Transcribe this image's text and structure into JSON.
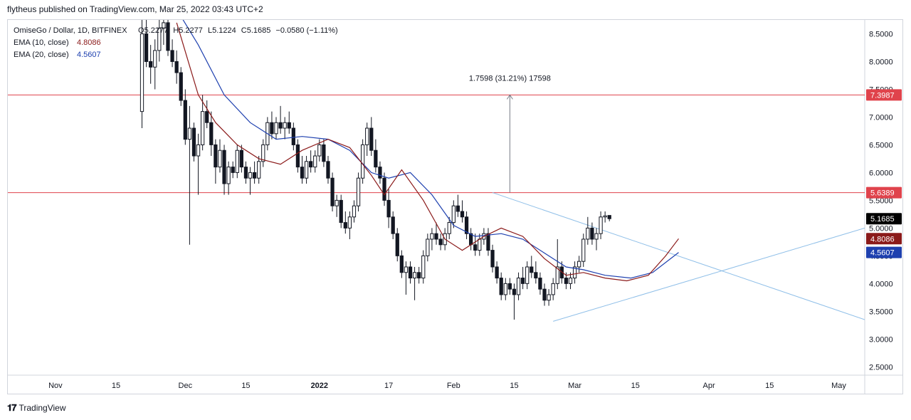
{
  "caption": "flytheus published on TradingView.com, Mar 25, 2022 03:43 UTC+2",
  "footer": {
    "brand": "TradingView",
    "logo_icon": "tradingview-logo-icon"
  },
  "colors": {
    "ema10": "#8b1a1a",
    "ema20": "#1e40af",
    "hline": "#e0434c",
    "trend": "#8fbfe8",
    "candle": "#131722",
    "grid": "#d1d4dc"
  },
  "chart_data": {
    "type": "candlestick",
    "legend": {
      "symbol": "OmiseGo / Dollar, 1D, BITFINEX",
      "ohlc": {
        "o_label": "O",
        "o": "5.2277",
        "h_label": "H",
        "h": "5.2277",
        "l_label": "L",
        "l": "5.1224",
        "c_label": "C",
        "c": "5.1685",
        "change": "−0.0580 (−1.11%)"
      },
      "ema10": {
        "label": "EMA (10, close)",
        "value": "4.8086"
      },
      "ema20": {
        "label": "EMA (20, close)",
        "value": "4.5607"
      }
    },
    "y_ticks": [
      "8.5000",
      "8.0000",
      "7.5000",
      "7.0000",
      "6.5000",
      "6.0000",
      "5.5000",
      "5.0000",
      "4.5000",
      "4.0000",
      "3.5000",
      "3.0000",
      "2.5000"
    ],
    "y_tick_values": [
      8.5,
      8.0,
      7.5,
      7.0,
      6.5,
      6.0,
      5.5,
      5.0,
      4.5,
      4.0,
      3.5,
      3.0,
      2.5
    ],
    "ylim": [
      2.35,
      8.75
    ],
    "x_ticks": [
      {
        "label": "Nov",
        "date": "2021-11-01"
      },
      {
        "label": "15",
        "date": "2021-11-15"
      },
      {
        "label": "Dec",
        "date": "2021-12-01"
      },
      {
        "label": "15",
        "date": "2021-12-15"
      },
      {
        "label": "2022",
        "date": "2022-01-01"
      },
      {
        "label": "17",
        "date": "2022-01-17"
      },
      {
        "label": "Feb",
        "date": "2022-02-01"
      },
      {
        "label": "15",
        "date": "2022-02-15"
      },
      {
        "label": "Mar",
        "date": "2022-03-01"
      },
      {
        "label": "15",
        "date": "2022-03-15"
      },
      {
        "label": "Apr",
        "date": "2022-04-01"
      },
      {
        "label": "15",
        "date": "2022-04-15"
      },
      {
        "label": "May",
        "date": "2022-05-01"
      }
    ],
    "xlim": [
      "2021-10-21",
      "2022-05-07"
    ],
    "first_candle_date": "2021-11-21",
    "candles": [
      [
        7.1,
        8.8,
        6.8,
        8.5
      ],
      [
        8.5,
        8.9,
        7.9,
        8.0
      ],
      [
        8.0,
        8.3,
        7.6,
        7.9
      ],
      [
        7.9,
        8.4,
        7.5,
        8.2
      ],
      [
        8.2,
        8.8,
        8.0,
        8.6
      ],
      [
        8.6,
        9.0,
        8.3,
        8.7
      ],
      [
        8.7,
        8.9,
        8.1,
        8.2
      ],
      [
        8.2,
        8.4,
        7.9,
        8.0
      ],
      [
        8.0,
        8.2,
        7.6,
        7.8
      ],
      [
        7.8,
        7.9,
        7.2,
        7.3
      ],
      [
        7.3,
        7.5,
        6.5,
        6.6
      ],
      [
        6.6,
        7.2,
        4.7,
        6.8
      ],
      [
        6.8,
        6.9,
        6.2,
        6.3
      ],
      [
        6.3,
        6.7,
        5.6,
        6.5
      ],
      [
        6.5,
        7.4,
        6.4,
        7.1
      ],
      [
        7.1,
        7.3,
        6.8,
        6.9
      ],
      [
        6.9,
        7.1,
        6.3,
        6.5
      ],
      [
        6.5,
        6.6,
        5.8,
        6.1
      ],
      [
        6.1,
        6.6,
        6.0,
        6.4
      ],
      [
        6.4,
        6.5,
        5.6,
        5.8
      ],
      [
        5.8,
        6.2,
        5.6,
        6.1
      ],
      [
        6.1,
        6.2,
        5.9,
        6.0
      ],
      [
        6.0,
        6.5,
        5.9,
        6.4
      ],
      [
        6.4,
        6.5,
        6.0,
        6.1
      ],
      [
        6.1,
        6.2,
        5.8,
        5.9
      ],
      [
        5.9,
        6.1,
        5.6,
        6.0
      ],
      [
        6.0,
        6.2,
        5.8,
        5.9
      ],
      [
        5.9,
        6.3,
        5.8,
        6.2
      ],
      [
        6.2,
        6.6,
        6.1,
        6.5
      ],
      [
        6.5,
        7.0,
        6.4,
        6.9
      ],
      [
        6.9,
        7.1,
        6.6,
        6.7
      ],
      [
        6.7,
        7.0,
        6.6,
        6.9
      ],
      [
        6.9,
        7.2,
        6.7,
        6.8
      ],
      [
        6.8,
        7.0,
        6.6,
        6.9
      ],
      [
        6.9,
        7.1,
        6.7,
        6.8
      ],
      [
        6.8,
        6.9,
        6.4,
        6.5
      ],
      [
        6.5,
        6.6,
        6.0,
        6.1
      ],
      [
        6.1,
        6.3,
        5.8,
        5.9
      ],
      [
        5.9,
        6.3,
        5.8,
        6.2
      ],
      [
        6.2,
        6.4,
        6.0,
        6.1
      ],
      [
        6.1,
        6.4,
        6.0,
        6.3
      ],
      [
        6.3,
        6.6,
        6.2,
        6.5
      ],
      [
        6.5,
        6.6,
        6.1,
        6.2
      ],
      [
        6.2,
        6.3,
        5.8,
        5.9
      ],
      [
        5.9,
        6.0,
        5.3,
        5.4
      ],
      [
        5.4,
        5.6,
        5.2,
        5.5
      ],
      [
        5.5,
        5.6,
        5.0,
        5.1
      ],
      [
        5.1,
        5.3,
        4.9,
        5.0
      ],
      [
        5.0,
        5.3,
        4.8,
        5.2
      ],
      [
        5.2,
        5.5,
        5.1,
        5.4
      ],
      [
        5.4,
        6.0,
        5.3,
        5.9
      ],
      [
        5.9,
        6.6,
        5.8,
        6.5
      ],
      [
        6.5,
        6.9,
        6.3,
        6.8
      ],
      [
        6.8,
        7.0,
        6.3,
        6.4
      ],
      [
        6.4,
        6.6,
        6.0,
        6.1
      ],
      [
        6.1,
        6.2,
        5.8,
        5.9
      ],
      [
        5.9,
        6.0,
        5.4,
        5.5
      ],
      [
        5.5,
        5.7,
        5.0,
        5.2
      ],
      [
        5.2,
        5.3,
        4.8,
        4.9
      ],
      [
        4.9,
        5.0,
        4.4,
        4.5
      ],
      [
        4.5,
        4.6,
        4.1,
        4.2
      ],
      [
        4.2,
        4.4,
        3.8,
        4.3
      ],
      [
        4.3,
        4.4,
        4.0,
        4.1
      ],
      [
        4.1,
        4.3,
        3.7,
        4.2
      ],
      [
        4.2,
        4.3,
        4.0,
        4.1
      ],
      [
        4.1,
        4.6,
        4.0,
        4.5
      ],
      [
        4.5,
        4.9,
        4.4,
        4.8
      ],
      [
        4.8,
        5.0,
        4.6,
        4.9
      ],
      [
        4.9,
        5.1,
        4.7,
        4.8
      ],
      [
        4.8,
        4.9,
        4.6,
        4.7
      ],
      [
        4.7,
        5.0,
        4.6,
        4.9
      ],
      [
        4.9,
        5.2,
        4.8,
        5.1
      ],
      [
        5.1,
        5.5,
        5.0,
        5.4
      ],
      [
        5.4,
        5.6,
        5.2,
        5.3
      ],
      [
        5.3,
        5.5,
        5.1,
        5.2
      ],
      [
        5.2,
        5.3,
        4.8,
        4.9
      ],
      [
        4.9,
        5.0,
        4.6,
        4.7
      ],
      [
        4.7,
        4.9,
        4.5,
        4.6
      ],
      [
        4.6,
        4.9,
        4.5,
        4.8
      ],
      [
        4.8,
        5.0,
        4.7,
        4.9
      ],
      [
        4.9,
        5.0,
        4.5,
        4.6
      ],
      [
        4.6,
        4.7,
        4.2,
        4.3
      ],
      [
        4.3,
        4.4,
        4.0,
        4.1
      ],
      [
        4.1,
        4.2,
        3.7,
        3.8
      ],
      [
        3.8,
        4.1,
        3.7,
        4.0
      ],
      [
        4.0,
        4.1,
        3.8,
        3.9
      ],
      [
        3.9,
        4.0,
        3.35,
        3.8
      ],
      [
        3.8,
        4.2,
        3.7,
        4.1
      ],
      [
        4.1,
        4.3,
        3.9,
        4.0
      ],
      [
        4.0,
        4.4,
        3.9,
        4.3
      ],
      [
        4.3,
        4.5,
        4.1,
        4.2
      ],
      [
        4.2,
        4.4,
        4.0,
        4.1
      ],
      [
        4.1,
        4.2,
        3.8,
        3.9
      ],
      [
        3.9,
        4.0,
        3.6,
        3.7
      ],
      [
        3.7,
        3.9,
        3.6,
        3.8
      ],
      [
        3.8,
        4.1,
        3.7,
        4.0
      ],
      [
        4.0,
        4.8,
        3.9,
        4.3
      ],
      [
        4.3,
        4.4,
        4.0,
        4.1
      ],
      [
        4.1,
        4.2,
        3.9,
        4.0
      ],
      [
        4.0,
        4.2,
        3.9,
        4.1
      ],
      [
        4.1,
        4.4,
        4.0,
        4.3
      ],
      [
        4.3,
        4.5,
        4.2,
        4.4
      ],
      [
        4.4,
        4.9,
        4.3,
        4.8
      ],
      [
        4.8,
        5.2,
        4.7,
        5.0
      ],
      [
        5.0,
        5.1,
        4.7,
        4.8
      ],
      [
        4.8,
        5.0,
        4.6,
        4.9
      ],
      [
        4.9,
        5.3,
        4.8,
        5.2
      ],
      [
        5.2,
        5.3,
        5.1,
        5.22
      ],
      [
        5.2277,
        5.2277,
        5.1224,
        5.1685
      ]
    ],
    "ema10": [
      [
        "2021-11-29",
        8.7
      ],
      [
        "2021-12-04",
        7.4
      ],
      [
        "2021-12-08",
        6.9
      ],
      [
        "2021-12-13",
        6.5
      ],
      [
        "2021-12-18",
        6.25
      ],
      [
        "2021-12-23",
        6.15
      ],
      [
        "2021-12-28",
        6.4
      ],
      [
        "2022-01-03",
        6.6
      ],
      [
        "2022-01-08",
        6.45
      ],
      [
        "2022-01-13",
        5.95
      ],
      [
        "2022-01-16",
        5.6
      ],
      [
        "2022-01-20",
        6.05
      ],
      [
        "2022-01-25",
        5.5
      ],
      [
        "2022-01-30",
        4.8
      ],
      [
        "2022-02-03",
        4.6
      ],
      [
        "2022-02-08",
        4.85
      ],
      [
        "2022-02-12",
        5.0
      ],
      [
        "2022-02-17",
        4.85
      ],
      [
        "2022-02-22",
        4.45
      ],
      [
        "2022-02-27",
        4.15
      ],
      [
        "2022-03-03",
        4.2
      ],
      [
        "2022-03-08",
        4.1
      ],
      [
        "2022-03-13",
        4.05
      ],
      [
        "2022-03-18",
        4.15
      ],
      [
        "2022-03-22",
        4.5
      ],
      [
        "2022-03-25",
        4.8086
      ]
    ],
    "ema20": [
      [
        "2021-11-27",
        9.2
      ],
      [
        "2021-12-04",
        8.3
      ],
      [
        "2021-12-10",
        7.4
      ],
      [
        "2021-12-16",
        6.9
      ],
      [
        "2021-12-22",
        6.6
      ],
      [
        "2021-12-28",
        6.65
      ],
      [
        "2022-01-03",
        6.6
      ],
      [
        "2022-01-08",
        6.4
      ],
      [
        "2022-01-13",
        6.0
      ],
      [
        "2022-01-17",
        5.9
      ],
      [
        "2022-01-22",
        6.0
      ],
      [
        "2022-01-27",
        5.6
      ],
      [
        "2022-02-01",
        5.05
      ],
      [
        "2022-02-06",
        4.85
      ],
      [
        "2022-02-12",
        4.9
      ],
      [
        "2022-02-17",
        4.8
      ],
      [
        "2022-02-22",
        4.55
      ],
      [
        "2022-02-27",
        4.3
      ],
      [
        "2022-03-03",
        4.25
      ],
      [
        "2022-03-08",
        4.15
      ],
      [
        "2022-03-14",
        4.1
      ],
      [
        "2022-03-19",
        4.2
      ],
      [
        "2022-03-25",
        4.5607
      ]
    ],
    "hlines": [
      {
        "value": 7.3987,
        "label": "7.3987"
      },
      {
        "value": 5.6389,
        "label": "5.6389"
      }
    ],
    "trendlines": [
      {
        "from": [
          "2022-02-10",
          5.6389
        ],
        "to": [
          "2022-05-07",
          3.35
        ]
      },
      {
        "from": [
          "2022-02-24",
          3.32
        ],
        "to": [
          "2022-05-07",
          5.0
        ]
      }
    ],
    "measure": {
      "date": "2022-02-14",
      "from": 5.6389,
      "to": 7.3987,
      "label": "1.7598 (31.21%) 17598"
    },
    "price_tags": [
      {
        "label": "7.3987",
        "value": 7.3987,
        "bg": "#e0434c"
      },
      {
        "label": "5.6389",
        "value": 5.6389,
        "bg": "#e0434c"
      },
      {
        "label": "5.1685",
        "value": 5.1685,
        "bg": "#000000"
      },
      {
        "label": "4.8086",
        "value": 4.8086,
        "bg": "#8b1a1a"
      },
      {
        "label": "4.5607",
        "value": 4.5607,
        "bg": "#1e40af"
      }
    ]
  }
}
